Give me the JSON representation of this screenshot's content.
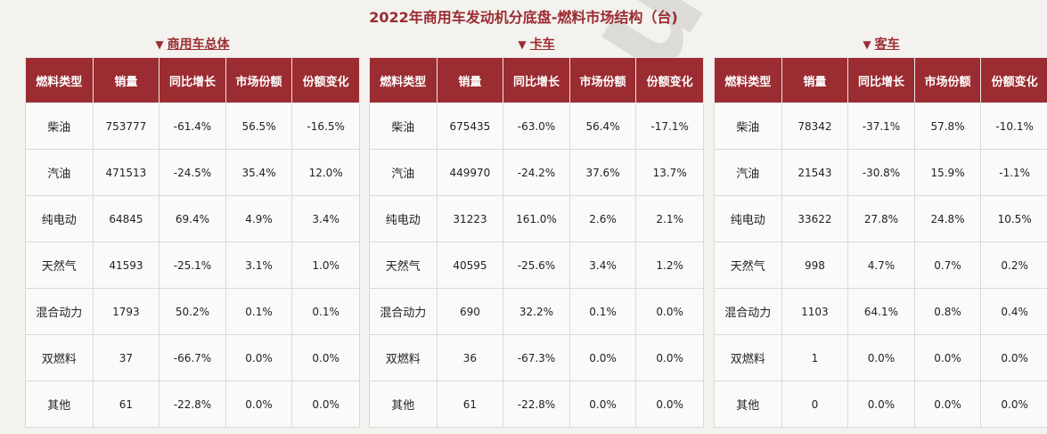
{
  "page_title": "2022年商用车发动机分底盘-燃料市场结构（台)",
  "watermark_text": "AutoThink",
  "arrow_glyph": "▼",
  "headers": [
    "燃料类型",
    "销量",
    "同比增长",
    "市场份额",
    "份额变化"
  ],
  "panels": [
    {
      "title": "商用车总体",
      "rows": [
        [
          "柴油",
          "753777",
          "-61.4%",
          "56.5%",
          "-16.5%"
        ],
        [
          "汽油",
          "471513",
          "-24.5%",
          "35.4%",
          "12.0%"
        ],
        [
          "纯电动",
          "64845",
          "69.4%",
          "4.9%",
          "3.4%"
        ],
        [
          "天然气",
          "41593",
          "-25.1%",
          "3.1%",
          "1.0%"
        ],
        [
          "混合动力",
          "1793",
          "50.2%",
          "0.1%",
          "0.1%"
        ],
        [
          "双燃料",
          "37",
          "-66.7%",
          "0.0%",
          "0.0%"
        ],
        [
          "其他",
          "61",
          "-22.8%",
          "0.0%",
          "0.0%"
        ]
      ]
    },
    {
      "title": "卡车",
      "rows": [
        [
          "柴油",
          "675435",
          "-63.0%",
          "56.4%",
          "-17.1%"
        ],
        [
          "汽油",
          "449970",
          "-24.2%",
          "37.6%",
          "13.7%"
        ],
        [
          "纯电动",
          "31223",
          "161.0%",
          "2.6%",
          "2.1%"
        ],
        [
          "天然气",
          "40595",
          "-25.6%",
          "3.4%",
          "1.2%"
        ],
        [
          "混合动力",
          "690",
          "32.2%",
          "0.1%",
          "0.0%"
        ],
        [
          "双燃料",
          "36",
          "-67.3%",
          "0.0%",
          "0.0%"
        ],
        [
          "其他",
          "61",
          "-22.8%",
          "0.0%",
          "0.0%"
        ]
      ]
    },
    {
      "title": "客车",
      "rows": [
        [
          "柴油",
          "78342",
          "-37.1%",
          "57.8%",
          "-10.1%"
        ],
        [
          "汽油",
          "21543",
          "-30.8%",
          "15.9%",
          "-1.1%"
        ],
        [
          "纯电动",
          "33622",
          "27.8%",
          "24.8%",
          "10.5%"
        ],
        [
          "天然气",
          "998",
          "4.7%",
          "0.7%",
          "0.2%"
        ],
        [
          "混合动力",
          "1103",
          "64.1%",
          "0.8%",
          "0.4%"
        ],
        [
          "双燃料",
          "1",
          "0.0%",
          "0.0%",
          "0.0%"
        ],
        [
          "其他",
          "0",
          "0.0%",
          "0.0%",
          "0.0%"
        ]
      ]
    }
  ]
}
